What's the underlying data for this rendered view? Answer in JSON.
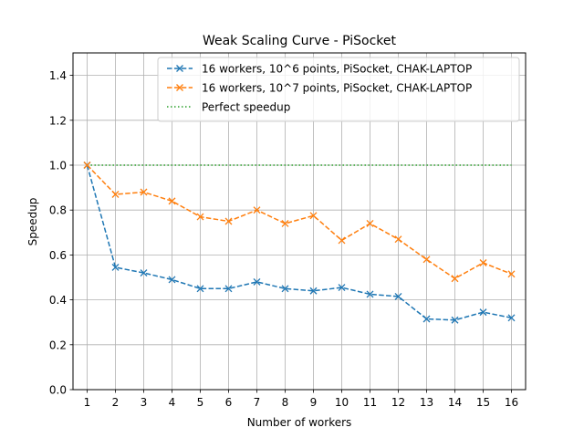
{
  "chart_data": {
    "type": "line",
    "title": "Weak Scaling Curve - PiSocket",
    "xlabel": "Number of workers",
    "ylabel": "Speedup",
    "x": [
      1,
      2,
      3,
      4,
      5,
      6,
      7,
      8,
      9,
      10,
      11,
      12,
      13,
      14,
      15,
      16
    ],
    "xlim": [
      0.5,
      16.5
    ],
    "ylim": [
      0.0,
      1.5
    ],
    "yticks": [
      0.0,
      0.2,
      0.4,
      0.6,
      0.8,
      1.0,
      1.2,
      1.4
    ],
    "ytick_labels": [
      "0.0",
      "0.2",
      "0.4",
      "0.6",
      "0.8",
      "1.0",
      "1.2",
      "1.4"
    ],
    "xtick_labels": [
      "1",
      "2",
      "3",
      "4",
      "5",
      "6",
      "7",
      "8",
      "9",
      "10",
      "11",
      "12",
      "13",
      "14",
      "15",
      "16"
    ],
    "grid": true,
    "legend_position": "top-right",
    "series": [
      {
        "name": "16 workers, 10^6 points, PiSocket, CHAK-LAPTOP",
        "color": "#1f77b4",
        "linestyle": "dashed",
        "marker": "x",
        "values": [
          1.0,
          0.545,
          0.52,
          0.49,
          0.45,
          0.45,
          0.48,
          0.45,
          0.44,
          0.455,
          0.425,
          0.415,
          0.315,
          0.31,
          0.345,
          0.32
        ]
      },
      {
        "name": "16 workers, 10^7 points, PiSocket, CHAK-LAPTOP",
        "color": "#ff7f0e",
        "linestyle": "dashed",
        "marker": "x",
        "values": [
          1.0,
          0.87,
          0.88,
          0.84,
          0.77,
          0.75,
          0.8,
          0.74,
          0.775,
          0.665,
          0.74,
          0.67,
          0.58,
          0.495,
          0.565,
          0.515
        ]
      },
      {
        "name": "Perfect speedup",
        "color": "#2ca02c",
        "linestyle": "dotted",
        "marker": "none",
        "values": [
          1.0,
          1.0,
          1.0,
          1.0,
          1.0,
          1.0,
          1.0,
          1.0,
          1.0,
          1.0,
          1.0,
          1.0,
          1.0,
          1.0,
          1.0,
          1.0
        ]
      }
    ]
  }
}
